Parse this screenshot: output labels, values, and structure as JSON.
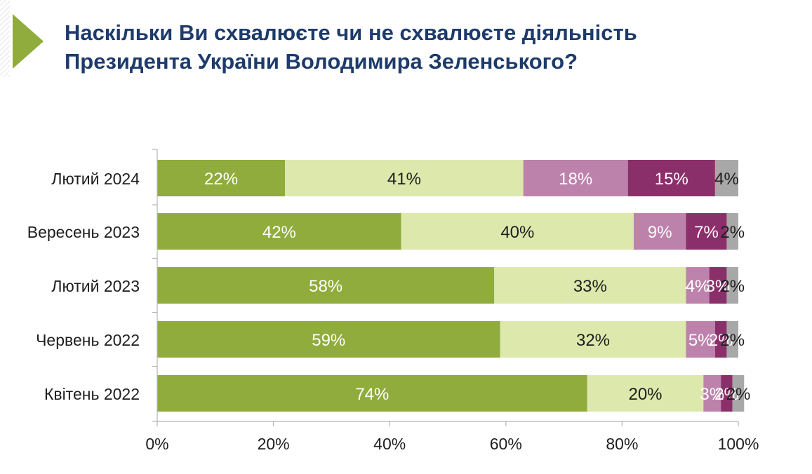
{
  "title": "Наскільки Ви схвалюєте чи не схвалюєте діяльність Президента України Володимира Зеленського?",
  "chart_data": {
    "type": "bar",
    "orientation": "horizontal",
    "stacked": true,
    "categories": [
      "Лютий 2024",
      "Вересень 2023",
      "Лютий 2023",
      "Червень 2022",
      "Квітень 2022"
    ],
    "series": [
      {
        "values": [
          22,
          42,
          58,
          59,
          74
        ],
        "color": "#8fac3c",
        "label_color": "#ffffff"
      },
      {
        "values": [
          41,
          40,
          33,
          32,
          20
        ],
        "color": "#dde8ad",
        "label_color": "#1e1e1e"
      },
      {
        "values": [
          18,
          9,
          4,
          5,
          3
        ],
        "color": "#bd82ac",
        "label_color": "#ffffff"
      },
      {
        "values": [
          15,
          7,
          3,
          2,
          2
        ],
        "color": "#8b2f6b",
        "label_color": "#ffffff"
      },
      {
        "values": [
          4,
          2,
          2,
          2,
          2
        ],
        "color": "#a8a8a8",
        "label_color": "#1e1e1e"
      }
    ],
    "data_labels": [
      [
        "22%",
        "41%",
        "18%",
        "15%",
        "4%"
      ],
      [
        "42%",
        "40%",
        "9%",
        "7%",
        "2%"
      ],
      [
        "58%",
        "33%",
        "4%",
        "3%",
        "2%"
      ],
      [
        "59%",
        "32%",
        "5%",
        "2%",
        "2%"
      ],
      [
        "74%",
        "20%",
        "3%",
        "2%",
        "2%"
      ]
    ],
    "xlim": [
      0,
      100
    ],
    "xticks": [
      0,
      20,
      40,
      60,
      80,
      100
    ],
    "xtick_labels": [
      "0%",
      "20%",
      "40%",
      "60%",
      "80%",
      "100%"
    ],
    "grid": false,
    "legend": "none"
  }
}
